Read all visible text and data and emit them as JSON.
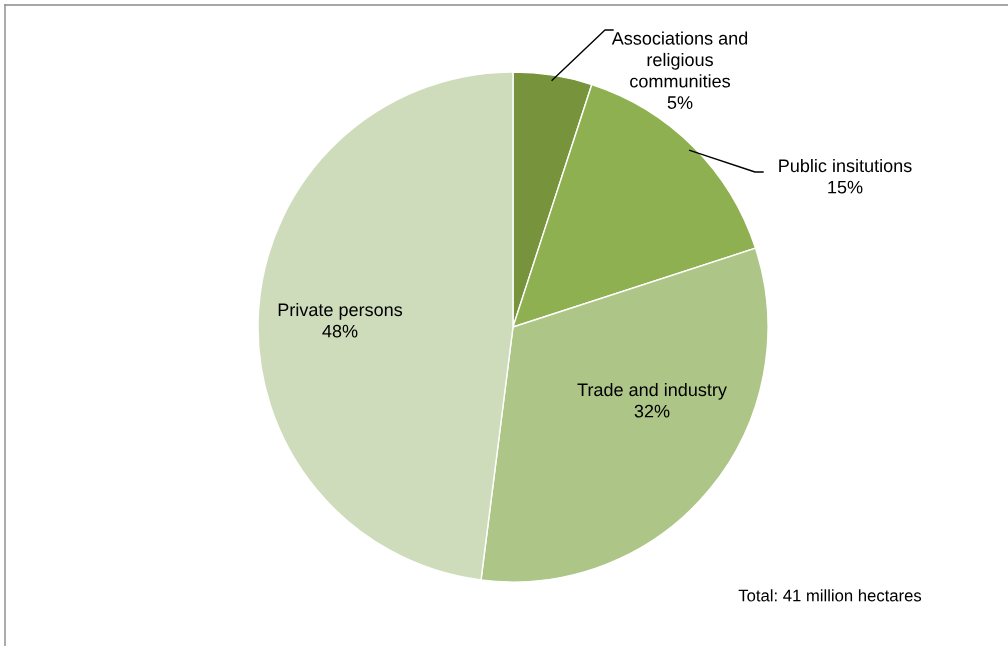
{
  "chart_data": {
    "type": "pie",
    "categories": [
      "Associations and\nreligious\ncommunities",
      "Public insitutions",
      "Trade and industry",
      "Private persons"
    ],
    "values": [
      5,
      15,
      32,
      48
    ],
    "value_labels": [
      "5%",
      "15%",
      "32%",
      "48%"
    ],
    "colors": [
      "#77933c",
      "#8fb050",
      "#adc687",
      "#cfdcbb"
    ],
    "annotations": [
      "Total: 41 million hectares"
    ],
    "legend": false
  }
}
